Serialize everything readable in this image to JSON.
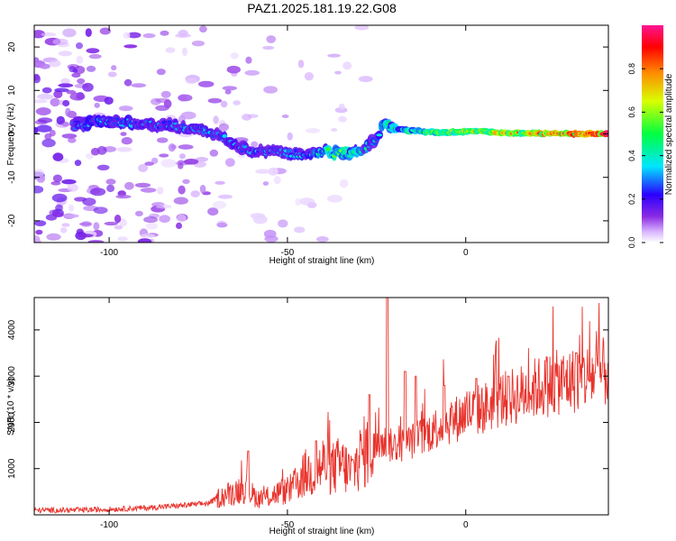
{
  "figure": {
    "title": "PAZ1.2025.181.19.22.G08"
  },
  "colors": {
    "axis": "#000000",
    "snr_line": "#e8332c",
    "background": "#ffffff"
  },
  "chart_data": [
    {
      "type": "heatmap",
      "xlabel": "Height of straight line (km)",
      "ylabel": "Frequency (Hz)",
      "xlim": [
        -121,
        40
      ],
      "ylim": [
        -25,
        25
      ],
      "xticks": [
        -100,
        -50,
        0
      ],
      "yticks": [
        -20,
        -10,
        0,
        10,
        20
      ],
      "colorbar": {
        "label": "Normalized spectral amplitude",
        "range": [
          0,
          1
        ],
        "ticks": [
          0.0,
          0.2,
          0.4,
          0.6,
          0.8
        ],
        "colormap": [
          "#ffffff",
          "#d8b4ff",
          "#8a2be2",
          "#2b00ff",
          "#00e6ff",
          "#00ff40",
          "#d8ff00",
          "#ff8c00",
          "#ff0000",
          "#ff1493"
        ]
      },
      "ridge": {
        "height_km": [
          -110,
          -105,
          -100,
          -95,
          -90,
          -85,
          -80,
          -75,
          -70,
          -65,
          -60,
          -55,
          -50,
          -45,
          -40,
          -35,
          -30,
          -25,
          -23,
          -20,
          -15,
          -10,
          -5,
          0,
          5,
          10,
          15,
          20,
          25,
          30,
          35,
          40
        ],
        "frequency_hz": [
          2,
          2.5,
          3,
          2.6,
          2,
          2.2,
          1.6,
          1,
          0,
          -2.5,
          -4,
          -4,
          -4.5,
          -4.5,
          -4,
          -4.5,
          -4,
          -1,
          3,
          1,
          0.8,
          0.4,
          0.3,
          0.6,
          0.6,
          0.2,
          0.2,
          0.1,
          0.1,
          0,
          0,
          0
        ],
        "amplitude": [
          0.3,
          0.35,
          0.35,
          0.35,
          0.3,
          0.3,
          0.3,
          0.3,
          0.3,
          0.3,
          0.3,
          0.3,
          0.32,
          0.35,
          0.45,
          0.55,
          0.45,
          0.35,
          0.5,
          0.45,
          0.55,
          0.6,
          0.65,
          0.65,
          0.7,
          0.72,
          0.75,
          0.8,
          0.85,
          0.9,
          0.95,
          1.0
        ]
      }
    },
    {
      "type": "line",
      "xlabel": "Height of straight line (km)",
      "ylabel": "SNR (10 * v/v)",
      "xlim": [
        -121,
        40
      ],
      "ylim": [
        0,
        4700
      ],
      "xticks": [
        -100,
        -50,
        0
      ],
      "yticks": [
        1000,
        2000,
        3000,
        4000
      ],
      "series": [
        {
          "x": [
            -121,
            -110,
            -100,
            -90,
            -80,
            -72,
            -70,
            -65,
            -62,
            -60,
            -58,
            -55,
            -52,
            -50,
            -47,
            -45,
            -42,
            -40,
            -37,
            -35,
            -32,
            -30,
            -28,
            -25,
            -23,
            -22,
            -20,
            -18,
            -15,
            -12,
            -10,
            -8,
            -5,
            -2,
            0,
            5,
            10,
            15,
            20,
            25,
            30,
            35,
            40
          ],
          "y": [
            100,
            100,
            120,
            150,
            200,
            250,
            350,
            500,
            600,
            450,
            350,
            400,
            500,
            500,
            700,
            900,
            900,
            1100,
            1000,
            1100,
            900,
            1200,
            1400,
            1500,
            1600,
            1500,
            1500,
            1500,
            1600,
            1700,
            1800,
            1900,
            2000,
            2100,
            2200,
            2300,
            2500,
            2600,
            2750,
            2850,
            2900,
            3000,
            3100
          ],
          "spikes": [
            {
              "x": -61,
              "y": 1380
            },
            {
              "x": -42,
              "y": 1600
            },
            {
              "x": -27,
              "y": 2600
            },
            {
              "x": -22,
              "y": 4700
            },
            {
              "x": -17,
              "y": 3100
            },
            {
              "x": -14,
              "y": 3000
            },
            {
              "x": -6,
              "y": 2800
            },
            {
              "x": 3,
              "y": 2950
            },
            {
              "x": 12,
              "y": 3000
            },
            {
              "x": 31,
              "y": 3500
            }
          ]
        }
      ]
    }
  ]
}
